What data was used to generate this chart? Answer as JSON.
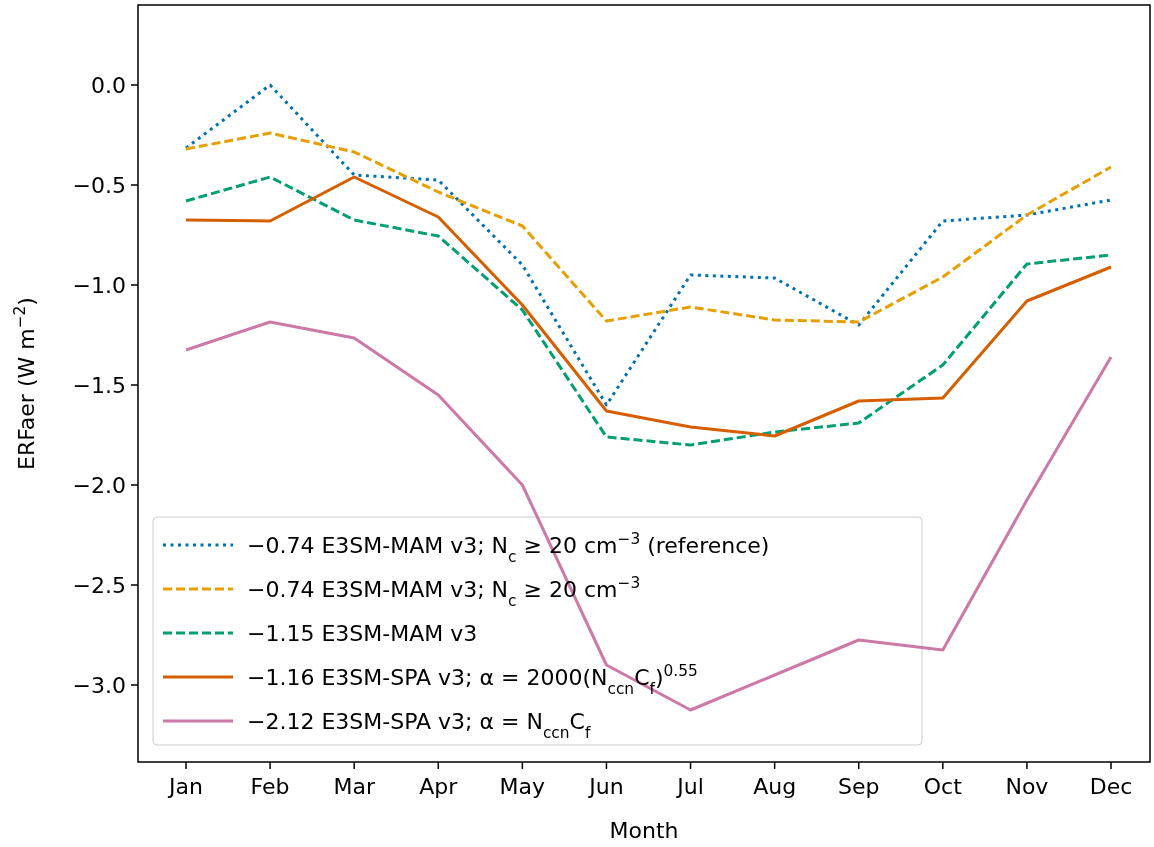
{
  "chart_data": {
    "type": "line",
    "xlabel": "Month",
    "ylabel": "ERFaer (W m$^{−2}$)",
    "categories": [
      "Jan",
      "Feb",
      "Mar",
      "Apr",
      "May",
      "Jun",
      "Jul",
      "Aug",
      "Sep",
      "Oct",
      "Nov",
      "Dec"
    ],
    "ylim": [
      -3.385,
      0.4
    ],
    "yticks": [
      {
        "value": 0,
        "label": "0.0"
      },
      {
        "value": -0.5,
        "label": "−0.5"
      },
      {
        "value": -1,
        "label": "−1.0"
      },
      {
        "value": -1.5,
        "label": "−1.5"
      },
      {
        "value": -2,
        "label": "−2.0"
      },
      {
        "value": -2.5,
        "label": "−2.5"
      },
      {
        "value": -3,
        "label": "−3.0"
      }
    ],
    "grid": false,
    "legend": "bottom left",
    "marker": "none",
    "series": [
      {
        "name": "−0.74 E3SM-MAM v3; N$_{c}$ ≥ 20 cm$^{−3}$ (reference)",
        "color": "#0072b2",
        "line_style": "dotted",
        "values": [
          -0.315,
          0.0,
          -0.45,
          -0.475,
          -0.9,
          -1.6,
          -0.95,
          -0.965,
          -1.2,
          -0.68,
          -0.65,
          -0.575
        ]
      },
      {
        "name": "−0.74 E3SM-MAM v3; N$_{c}$ ≥ 20 cm$^{−3}$",
        "color": "#e69f00",
        "line_style": "dashed",
        "values": [
          -0.32,
          -0.24,
          -0.335,
          -0.535,
          -0.705,
          -1.18,
          -1.11,
          -1.175,
          -1.185,
          -0.96,
          -0.65,
          -0.41
        ]
      },
      {
        "name": "−1.15 E3SM-MAM v3",
        "color": "#009e73",
        "line_style": "dashed",
        "values": [
          -0.58,
          -0.46,
          -0.675,
          -0.755,
          -1.125,
          -1.76,
          -1.8,
          -1.735,
          -1.69,
          -1.4,
          -0.895,
          -0.85
        ]
      },
      {
        "name": "−1.16 E3SM-SPA v3; α = 2000(N$_{ccn}$C$_{f}$)$^{0.55}$",
        "color": "#d55e00",
        "line_style": "solid",
        "values": [
          -0.675,
          -0.68,
          -0.46,
          -0.66,
          -1.1,
          -1.63,
          -1.71,
          -1.755,
          -1.58,
          -1.565,
          -1.08,
          -0.91
        ]
      },
      {
        "name": "−2.12 E3SM-SPA v3; α = N$_{ccn}$C$_{f}$",
        "color": "#cc79a7",
        "line_style": "solid",
        "values": [
          -1.325,
          -1.185,
          -1.265,
          -1.55,
          -2.0,
          -2.9,
          -3.125,
          -2.95,
          -2.775,
          -2.825,
          -2.075,
          -1.36
        ]
      }
    ]
  }
}
